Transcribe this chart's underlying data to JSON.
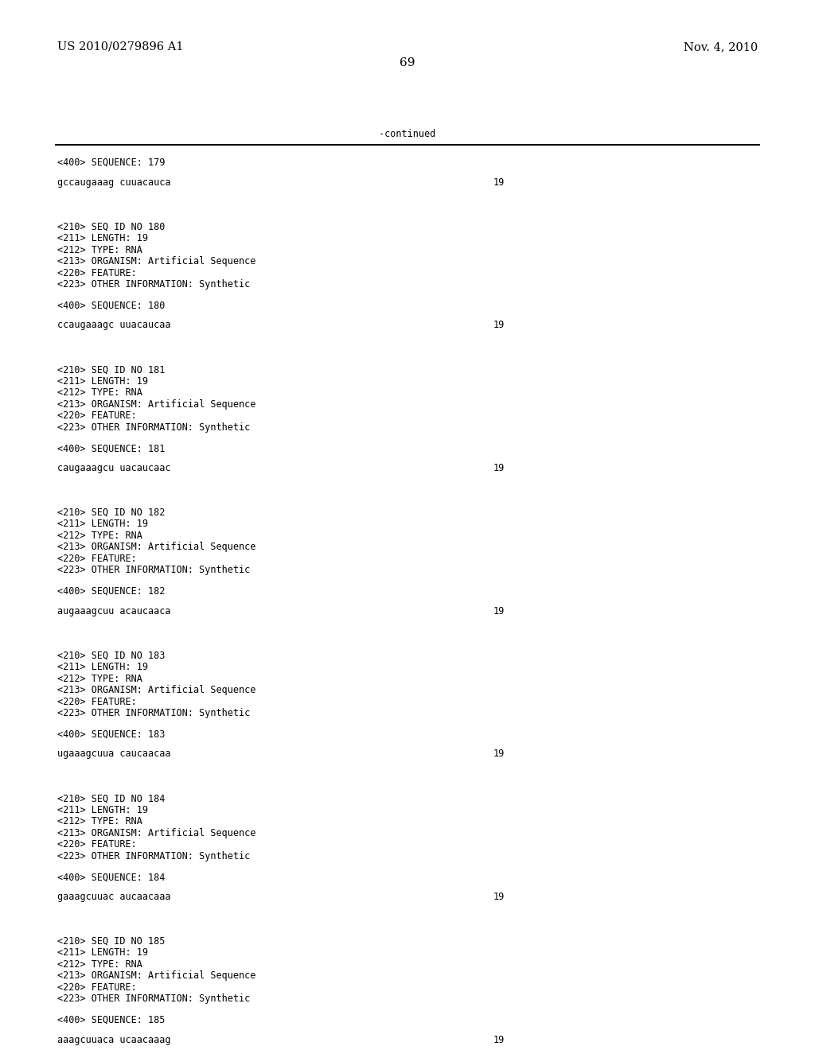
{
  "background_color": "#ffffff",
  "top_left_text": "US 2010/0279896 A1",
  "top_right_text": "Nov. 4, 2010",
  "page_number": "69",
  "continued_text": "-continued",
  "font_size_header": 10.5,
  "font_size_body": 8.5,
  "font_size_page": 11,
  "monospace_font": "DejaVu Sans Mono",
  "serif_font": "DejaVu Serif",
  "entries": [
    {
      "seq400": "<400> SEQUENCE: 179",
      "sequence": "gccaugaaag cuuacauca",
      "seq_num": "19",
      "fields": []
    },
    {
      "seq400": "<400> SEQUENCE: 180",
      "sequence": "ccaugaaagc uuacaucaa",
      "seq_num": "19",
      "fields": [
        "<210> SEQ ID NO 180",
        "<211> LENGTH: 19",
        "<212> TYPE: RNA",
        "<213> ORGANISM: Artificial Sequence",
        "<220> FEATURE:",
        "<223> OTHER INFORMATION: Synthetic"
      ]
    },
    {
      "seq400": "<400> SEQUENCE: 181",
      "sequence": "caugaaagcu uacaucaac",
      "seq_num": "19",
      "fields": [
        "<210> SEQ ID NO 181",
        "<211> LENGTH: 19",
        "<212> TYPE: RNA",
        "<213> ORGANISM: Artificial Sequence",
        "<220> FEATURE:",
        "<223> OTHER INFORMATION: Synthetic"
      ]
    },
    {
      "seq400": "<400> SEQUENCE: 182",
      "sequence": "augaaagcuu acaucaaca",
      "seq_num": "19",
      "fields": [
        "<210> SEQ ID NO 182",
        "<211> LENGTH: 19",
        "<212> TYPE: RNA",
        "<213> ORGANISM: Artificial Sequence",
        "<220> FEATURE:",
        "<223> OTHER INFORMATION: Synthetic"
      ]
    },
    {
      "seq400": "<400> SEQUENCE: 183",
      "sequence": "ugaaagcuua caucaacaa",
      "seq_num": "19",
      "fields": [
        "<210> SEQ ID NO 183",
        "<211> LENGTH: 19",
        "<212> TYPE: RNA",
        "<213> ORGANISM: Artificial Sequence",
        "<220> FEATURE:",
        "<223> OTHER INFORMATION: Synthetic"
      ]
    },
    {
      "seq400": "<400> SEQUENCE: 184",
      "sequence": "gaaagcuuac aucaacaaa",
      "seq_num": "19",
      "fields": [
        "<210> SEQ ID NO 184",
        "<211> LENGTH: 19",
        "<212> TYPE: RNA",
        "<213> ORGANISM: Artificial Sequence",
        "<220> FEATURE:",
        "<223> OTHER INFORMATION: Synthetic"
      ]
    },
    {
      "seq400": "<400> SEQUENCE: 185",
      "sequence": "aaagcuuaca ucaacaaag",
      "seq_num": "19",
      "fields": [
        "<210> SEQ ID NO 185",
        "<211> LENGTH: 19",
        "<212> TYPE: RNA",
        "<213> ORGANISM: Artificial Sequence",
        "<220> FEATURE:",
        "<223> OTHER INFORMATION: Synthetic"
      ]
    }
  ]
}
